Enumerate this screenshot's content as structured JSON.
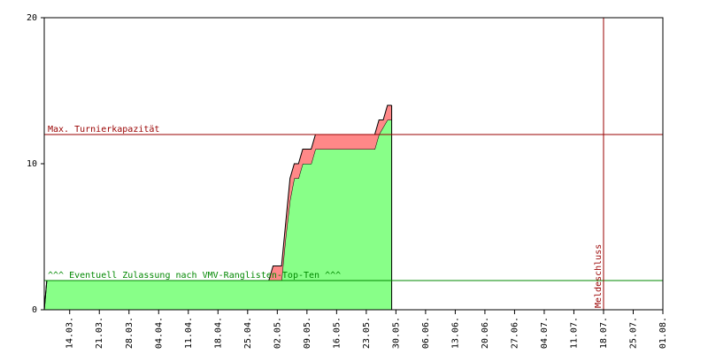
{
  "chart_data": {
    "type": "stacked-area",
    "x": [
      0,
      0.6,
      53,
      54,
      56,
      57,
      58,
      59,
      60,
      61,
      63,
      64,
      78,
      79,
      80,
      81,
      82
    ],
    "series": [
      {
        "color": "#88ff88",
        "values": [
          0,
          2,
          2,
          2,
          2,
          5,
          7.5,
          9,
          9,
          10,
          10,
          11,
          11,
          12,
          12.5,
          13,
          13
        ]
      },
      {
        "color": "#ff8888",
        "values": [
          0,
          0,
          0,
          1,
          1,
          1,
          1.5,
          1,
          1,
          1,
          1,
          1,
          1,
          1,
          0.5,
          1,
          1
        ]
      }
    ],
    "xlim": [
      0,
      146
    ],
    "xticks": [
      {
        "value": 6,
        "label": "14.03."
      },
      {
        "value": 13,
        "label": "21.03."
      },
      {
        "value": 20,
        "label": "28.03."
      },
      {
        "value": 27,
        "label": "04.04."
      },
      {
        "value": 34,
        "label": "11.04."
      },
      {
        "value": 41,
        "label": "18.04."
      },
      {
        "value": 48,
        "label": "25.04."
      },
      {
        "value": 55,
        "label": "02.05."
      },
      {
        "value": 62,
        "label": "09.05."
      },
      {
        "value": 69,
        "label": "16.05."
      },
      {
        "value": 76,
        "label": "23.05."
      },
      {
        "value": 83,
        "label": "30.05."
      },
      {
        "value": 90,
        "label": "06.06."
      },
      {
        "value": 97,
        "label": "13.06."
      },
      {
        "value": 104,
        "label": "20.06."
      },
      {
        "value": 111,
        "label": "27.06."
      },
      {
        "value": 118,
        "label": "04.07."
      },
      {
        "value": 125,
        "label": "11.07."
      },
      {
        "value": 132,
        "label": "18.07."
      },
      {
        "value": 139,
        "label": "25.07."
      },
      {
        "value": 146,
        "label": "01.08."
      }
    ],
    "ylim": [
      0,
      20
    ],
    "yticks": [
      0,
      10,
      20
    ],
    "hlines": [
      {
        "value": 12,
        "label": "Max. Turnierkapazität",
        "color": "#990000"
      },
      {
        "value": 2,
        "label": "^^^ Eventuell Zulassung nach VMV-Ranglisten-Top-Ten ^^^",
        "color": "#008800"
      }
    ],
    "vlines": [
      {
        "value": 132,
        "label": "Meldeschluss",
        "color": "#990000"
      }
    ]
  }
}
